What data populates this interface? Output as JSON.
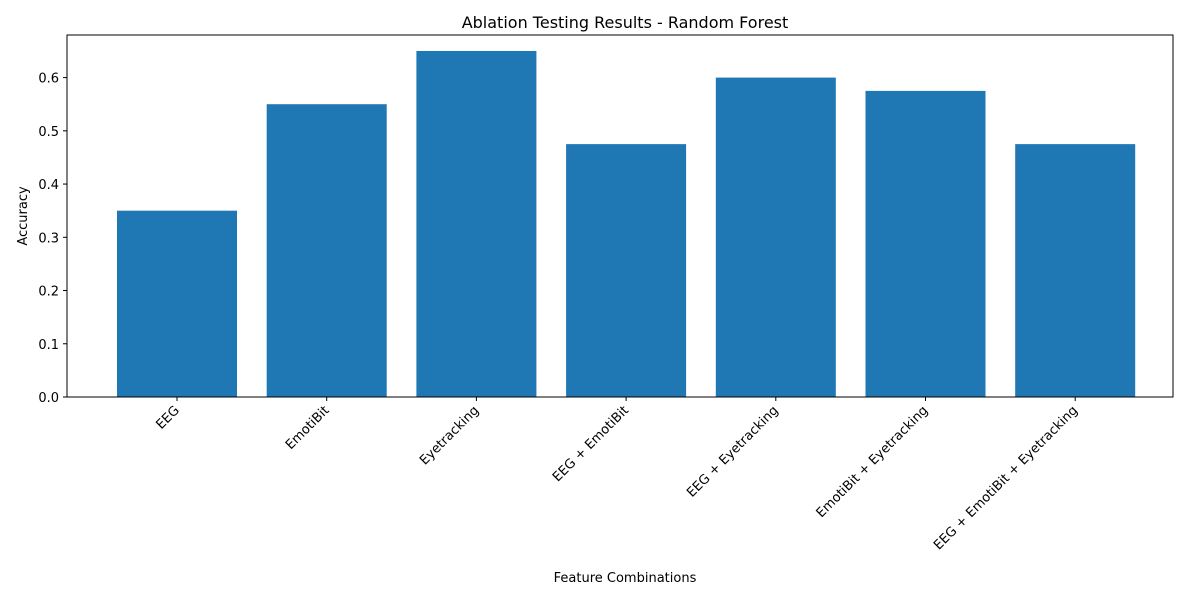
{
  "chart_data": {
    "type": "bar",
    "title": "Ablation Testing Results - Random Forest",
    "xlabel": "Feature Combinations",
    "ylabel": "Accuracy",
    "categories": [
      "EEG",
      "EmotiBit",
      "Eyetracking",
      "EEG + EmotiBit",
      "EEG + Eyetracking",
      "EmotiBit + Eyetracking",
      "EEG + EmotiBit + Eyetracking"
    ],
    "values": [
      0.35,
      0.55,
      0.65,
      0.475,
      0.6,
      0.575,
      0.475
    ],
    "ylim": [
      0,
      0.68
    ],
    "yticks": [
      "0.0",
      "0.1",
      "0.2",
      "0.3",
      "0.4",
      "0.5",
      "0.6"
    ],
    "bar_color": "#1f77b4",
    "grid": false
  }
}
